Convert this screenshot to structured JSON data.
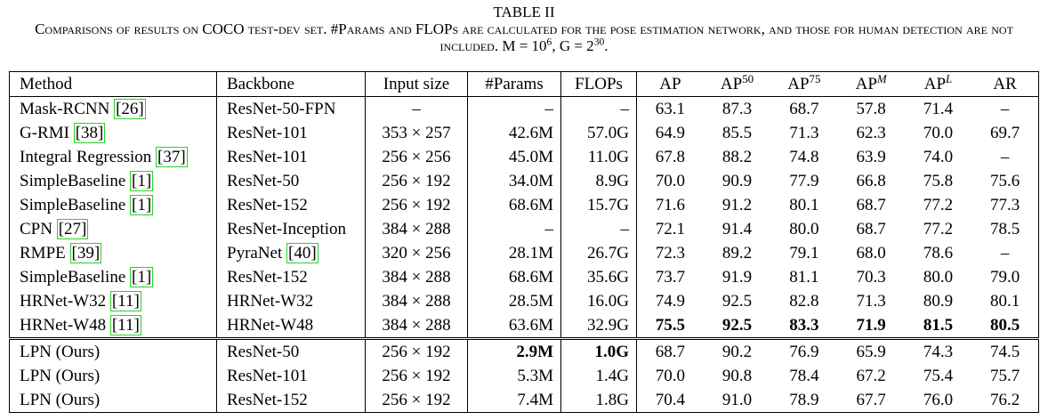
{
  "title": "TABLE II",
  "caption": {
    "text": "Comparisons of results on COCO test-dev set. #Params and FLOPs are calculated for the pose estimation network, and those for human detection are not included.",
    "m": "M = 10",
    "m_exp": "6",
    "g": ", G = 2",
    "g_exp": "30",
    "end": "."
  },
  "table": {
    "header": [
      {
        "text": "Method"
      },
      {
        "text": "Backbone"
      },
      {
        "text": "Input size"
      },
      {
        "text": "#Params"
      },
      {
        "text": "FLOPs"
      },
      {
        "text": "AP"
      },
      {
        "text": "AP",
        "sup": "50"
      },
      {
        "text": "AP",
        "sup": "75"
      },
      {
        "text": "AP",
        "sup": "M"
      },
      {
        "text": "AP",
        "sup": "L"
      },
      {
        "text": "AR"
      }
    ],
    "groups": [
      {
        "rows": [
          {
            "cells": [
              {
                "name": "Mask-RCNN",
                "cite": "[26]"
              },
              "ResNet-50-FPN",
              "–",
              "–",
              "–",
              "63.1",
              "87.3",
              "68.7",
              "57.8",
              "71.4",
              "–"
            ]
          },
          {
            "cells": [
              {
                "name": "G-RMI",
                "cite": "[38]"
              },
              "ResNet-101",
              "353 × 257",
              "42.6M",
              "57.0G",
              "64.9",
              "85.5",
              "71.3",
              "62.3",
              "70.0",
              "69.7"
            ]
          },
          {
            "cells": [
              {
                "name": "Integral Regression",
                "cite": "[37]"
              },
              "ResNet-101",
              "256 × 256",
              "45.0M",
              "11.0G",
              "67.8",
              "88.2",
              "74.8",
              "63.9",
              "74.0",
              "–"
            ]
          },
          {
            "cells": [
              {
                "name": "SimpleBaseline",
                "cite": "[1]"
              },
              "ResNet-50",
              "256 × 192",
              "34.0M",
              "8.9G",
              "70.0",
              "90.9",
              "77.9",
              "66.8",
              "75.8",
              "75.6"
            ]
          },
          {
            "cells": [
              {
                "name": "SimpleBaseline",
                "cite": "[1]"
              },
              "ResNet-152",
              "256 × 192",
              "68.6M",
              "15.7G",
              "71.6",
              "91.2",
              "80.1",
              "68.7",
              "77.2",
              "77.3"
            ]
          },
          {
            "cells": [
              {
                "name": "CPN",
                "cite": "[27]"
              },
              "ResNet-Inception",
              "384 × 288",
              "–",
              "–",
              "72.1",
              "91.4",
              "80.0",
              "68.7",
              "77.2",
              "78.5"
            ]
          },
          {
            "cells": [
              {
                "name": "RMPE",
                "cite": "[39]"
              },
              {
                "name": "PyraNet",
                "cite": "[40]"
              },
              "320 × 256",
              "28.1M",
              "26.7G",
              "72.3",
              "89.2",
              "79.1",
              "68.0",
              "78.6",
              "–"
            ]
          },
          {
            "cells": [
              {
                "name": "SimpleBaseline",
                "cite": "[1]"
              },
              "ResNet-152",
              "384 × 288",
              "68.6M",
              "35.6G",
              "73.7",
              "91.9",
              "81.1",
              "70.3",
              "80.0",
              "79.0"
            ]
          },
          {
            "cells": [
              {
                "name": "HRNet-W32",
                "cite": "[11]"
              },
              "HRNet-W32",
              "384 × 288",
              "28.5M",
              "16.0G",
              "74.9",
              "92.5",
              "82.8",
              "71.3",
              "80.9",
              "80.1"
            ]
          },
          {
            "cells": [
              {
                "name": "HRNet-W48",
                "cite": "[11]"
              },
              "HRNet-W48",
              "384 × 288",
              "63.6M",
              "32.9G",
              "75.5",
              "92.5",
              "83.3",
              "71.9",
              "81.5",
              "80.5"
            ],
            "bold": [
              5,
              6,
              7,
              8,
              9,
              10
            ]
          }
        ]
      },
      {
        "rows": [
          {
            "cells": [
              "LPN (Ours)",
              "ResNet-50",
              "256 × 192",
              "2.9M",
              "1.0G",
              "68.7",
              "90.2",
              "76.9",
              "65.9",
              "74.3",
              "74.5"
            ],
            "bold": [
              3,
              4
            ]
          },
          {
            "cells": [
              "LPN (Ours)",
              "ResNet-101",
              "256 × 192",
              "5.3M",
              "1.4G",
              "70.0",
              "90.8",
              "78.4",
              "67.2",
              "75.4",
              "75.7"
            ]
          },
          {
            "cells": [
              "LPN (Ours)",
              "ResNet-152",
              "256 × 192",
              "7.4M",
              "1.8G",
              "70.4",
              "91.0",
              "78.9",
              "67.7",
              "76.0",
              "76.2"
            ]
          }
        ]
      }
    ]
  }
}
